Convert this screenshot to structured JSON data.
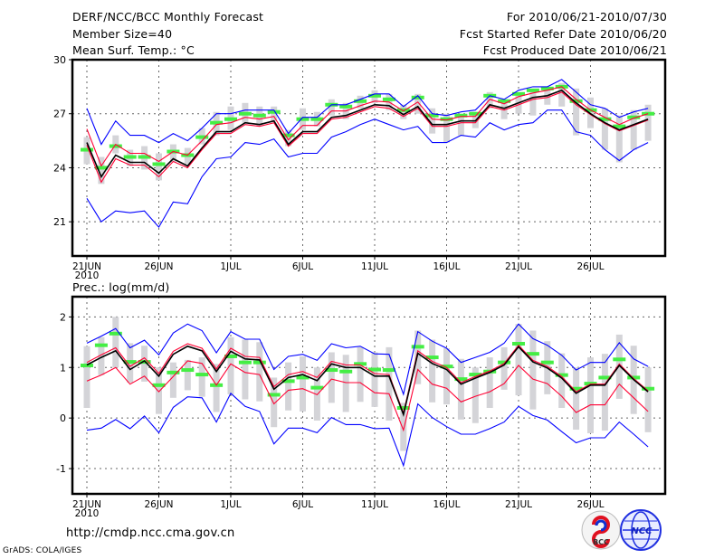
{
  "header": {
    "title": "DERF/NCC/BCC Monthly Forecast",
    "member_size": "Member Size=40",
    "variable": "Mean Surf. Temp.: °C",
    "period": "For 2010/06/21-2010/07/30",
    "start_date": "Fcst Started Refer Date 2010/06/20",
    "produced_date": "Fcst Produced Date 2010/06/21"
  },
  "footer": {
    "url": "http://cmdp.ncc.cma.gov.cn",
    "grads": "GrADS: COLA/IGES",
    "logo_bcc": "BCC",
    "logo_ncc": "NCC"
  },
  "colors": {
    "max_min": "#0000ff",
    "spread": "#ff0033",
    "mean": "#000000",
    "marker": "#44ee44",
    "box": "#d4d4d8"
  },
  "chart_data": [
    {
      "type": "line",
      "title": "Mean Surf. Temp.: °C",
      "ylabel": "",
      "ylim": [
        19.1,
        30
      ],
      "yticks": [
        "21",
        "24",
        "27",
        "30"
      ],
      "ytick_values": [
        21,
        24,
        27,
        30
      ],
      "xtick_labels": [
        "21JUN",
        "26JUN",
        "1JUL",
        "6JUL",
        "11JUL",
        "16JUL",
        "21JUL",
        "26JUL"
      ],
      "xtick_days": [
        0,
        5,
        10,
        15,
        20,
        25,
        30,
        35
      ],
      "year_label": "2010",
      "grid": true,
      "days": 40,
      "series": [
        {
          "name": "max",
          "color": "#0000ff",
          "values": [
            27.3,
            25.3,
            26.6,
            25.8,
            25.8,
            25.4,
            25.9,
            25.5,
            26.2,
            27.0,
            27.0,
            27.2,
            27.2,
            27.2,
            25.9,
            26.8,
            26.8,
            27.5,
            27.5,
            27.8,
            28.1,
            28.1,
            27.4,
            28.0,
            27.0,
            26.9,
            27.1,
            27.2,
            28.0,
            27.8,
            28.3,
            28.5,
            28.5,
            28.9,
            28.2,
            27.5,
            27.3,
            26.8,
            27.1,
            27.3
          ]
        },
        {
          "name": "min",
          "color": "#0000ff",
          "values": [
            22.3,
            21.0,
            21.6,
            21.5,
            21.6,
            20.7,
            22.1,
            22.0,
            23.5,
            24.5,
            24.6,
            25.4,
            25.3,
            25.6,
            24.6,
            24.8,
            24.8,
            25.7,
            26.0,
            26.4,
            26.7,
            26.4,
            26.1,
            26.3,
            25.4,
            25.4,
            25.8,
            25.7,
            26.5,
            26.1,
            26.4,
            26.5,
            27.2,
            27.2,
            26.0,
            25.8,
            25.0,
            24.4,
            25.0,
            25.4
          ]
        },
        {
          "name": "upper",
          "color": "#ff0033",
          "values": [
            26.15,
            24.1,
            25.3,
            24.8,
            24.8,
            24.35,
            24.9,
            24.7,
            25.5,
            26.4,
            26.5,
            26.8,
            26.7,
            26.85,
            25.55,
            26.35,
            26.35,
            27.15,
            27.15,
            27.45,
            27.7,
            27.65,
            27.15,
            27.65,
            26.7,
            26.65,
            26.85,
            26.85,
            27.8,
            27.55,
            27.95,
            28.15,
            28.3,
            28.5,
            27.8,
            27.2,
            26.8,
            26.4,
            26.75,
            27.0
          ]
        },
        {
          "name": "lower",
          "color": "#ff0033",
          "values": [
            25.25,
            23.2,
            24.5,
            24.15,
            24.15,
            23.5,
            24.35,
            24.0,
            25.0,
            25.9,
            25.9,
            26.4,
            26.3,
            26.5,
            25.2,
            25.9,
            25.9,
            26.7,
            26.8,
            27.1,
            27.4,
            27.3,
            26.85,
            27.3,
            26.3,
            26.3,
            26.5,
            26.5,
            27.4,
            27.2,
            27.5,
            27.8,
            27.9,
            28.2,
            27.5,
            26.95,
            26.45,
            26.05,
            26.35,
            26.65
          ]
        },
        {
          "name": "mean",
          "color": "#000000",
          "values": [
            25.4,
            23.5,
            24.7,
            24.3,
            24.3,
            23.7,
            24.5,
            24.1,
            25.1,
            26.0,
            26.0,
            26.5,
            26.4,
            26.6,
            25.3,
            26.0,
            26.0,
            26.8,
            26.9,
            27.2,
            27.5,
            27.45,
            26.95,
            27.4,
            26.4,
            26.4,
            26.6,
            26.6,
            27.5,
            27.3,
            27.6,
            27.9,
            28.0,
            28.3,
            27.6,
            27.0,
            26.5,
            26.1,
            26.4,
            26.7
          ]
        },
        {
          "name": "marker",
          "color": "#44ee44",
          "values": [
            25.0,
            24.0,
            25.2,
            24.6,
            24.6,
            24.2,
            24.9,
            24.7,
            25.7,
            26.5,
            26.7,
            27.0,
            26.9,
            27.1,
            25.8,
            26.7,
            26.7,
            27.5,
            27.4,
            27.7,
            28.0,
            27.8,
            27.2,
            27.9,
            26.9,
            26.7,
            26.9,
            27.0,
            28.0,
            27.7,
            28.1,
            28.3,
            28.4,
            28.5,
            27.7,
            27.2,
            26.7,
            26.3,
            26.8,
            27.0
          ]
        }
      ],
      "boxes_low": [
        24.2,
        23.1,
        24.8,
        24.1,
        23.9,
        23.3,
        24.3,
        24.2,
        25.3,
        25.8,
        26.1,
        26.5,
        26.3,
        26.6,
        25.2,
        26.1,
        26.3,
        26.9,
        26.7,
        27.3,
        27.6,
        27.2,
        26.7,
        27.0,
        25.9,
        25.4,
        25.8,
        26.2,
        27.3,
        26.7,
        27.0,
        26.9,
        27.5,
        27.4,
        25.8,
        26.2,
        25.0,
        24.3,
        25.0,
        25.5
      ],
      "boxes_high": [
        25.7,
        24.6,
        25.8,
        25.0,
        25.2,
        24.8,
        25.3,
        25.1,
        26.2,
        27.1,
        27.4,
        27.6,
        27.4,
        27.4,
        26.1,
        27.3,
        27.1,
        27.8,
        27.6,
        28.0,
        28.3,
        28.1,
        27.5,
        28.1,
        27.3,
        27.0,
        26.9,
        27.1,
        28.2,
        27.8,
        28.1,
        28.3,
        28.3,
        28.7,
        28.4,
        27.9,
        27.3,
        26.9,
        27.2,
        27.5
      ]
    },
    {
      "type": "line",
      "title": "Prec.: log(mm/d)",
      "ylabel": "",
      "ylim": [
        -1.5,
        2.4
      ],
      "yticks": [
        "-1",
        "0",
        "1",
        "2"
      ],
      "ytick_values": [
        -1,
        0,
        1,
        2
      ],
      "xtick_labels": [
        "21JUN",
        "26JUN",
        "1JUL",
        "6JUL",
        "11JUL",
        "16JUL",
        "21JUL",
        "26JUL"
      ],
      "xtick_days": [
        0,
        5,
        10,
        15,
        20,
        25,
        30,
        35
      ],
      "year_label": "2010",
      "grid": true,
      "days": 40,
      "series": [
        {
          "name": "max",
          "color": "#0000ff",
          "values": [
            1.48,
            1.62,
            1.77,
            1.39,
            1.54,
            1.25,
            1.68,
            1.86,
            1.73,
            1.29,
            1.71,
            1.56,
            1.56,
            0.96,
            1.22,
            1.26,
            1.14,
            1.47,
            1.39,
            1.42,
            1.27,
            1.26,
            0.47,
            1.71,
            1.52,
            1.38,
            1.1,
            1.2,
            1.3,
            1.48,
            1.86,
            1.57,
            1.44,
            1.24,
            0.95,
            1.1,
            1.1,
            1.49,
            1.17,
            1.02
          ]
        },
        {
          "name": "min",
          "color": "#0000ff",
          "values": [
            -0.24,
            -0.2,
            -0.03,
            -0.21,
            0.04,
            -0.29,
            0.21,
            0.42,
            0.4,
            -0.08,
            0.49,
            0.23,
            0.13,
            -0.51,
            -0.2,
            -0.2,
            -0.29,
            0.01,
            -0.13,
            -0.13,
            -0.21,
            -0.2,
            -0.94,
            0.28,
            0.01,
            -0.17,
            -0.32,
            -0.32,
            -0.21,
            -0.08,
            0.23,
            0.05,
            -0.04,
            -0.27,
            -0.49,
            -0.39,
            -0.39,
            -0.08,
            -0.32,
            -0.57
          ]
        },
        {
          "name": "upper",
          "color": "#ff0033",
          "values": [
            1.1,
            1.25,
            1.39,
            1.02,
            1.19,
            0.88,
            1.32,
            1.47,
            1.38,
            0.97,
            1.38,
            1.22,
            1.2,
            0.62,
            0.86,
            0.92,
            0.8,
            1.12,
            1.05,
            1.05,
            0.88,
            0.86,
            0.1,
            1.33,
            1.12,
            1.0,
            0.7,
            0.82,
            0.93,
            1.08,
            1.44,
            1.14,
            1.02,
            0.82,
            0.52,
            0.67,
            0.67,
            1.07,
            0.78,
            0.54
          ]
        },
        {
          "name": "lower",
          "color": "#ff0033",
          "values": [
            0.73,
            0.85,
            1.0,
            0.67,
            0.83,
            0.52,
            0.82,
            1.13,
            1.08,
            0.65,
            1.07,
            0.9,
            0.86,
            0.28,
            0.55,
            0.58,
            0.46,
            0.77,
            0.7,
            0.7,
            0.5,
            0.48,
            -0.24,
            0.96,
            0.67,
            0.59,
            0.32,
            0.43,
            0.52,
            0.68,
            1.04,
            0.77,
            0.68,
            0.43,
            0.11,
            0.26,
            0.26,
            0.67,
            0.4,
            0.13
          ]
        },
        {
          "name": "mean",
          "color": "#000000",
          "values": [
            1.05,
            1.2,
            1.33,
            0.96,
            1.13,
            0.83,
            1.26,
            1.42,
            1.33,
            0.92,
            1.32,
            1.17,
            1.15,
            0.57,
            0.8,
            0.86,
            0.74,
            1.07,
            1.0,
            1.0,
            0.83,
            0.83,
            0.07,
            1.28,
            1.08,
            0.96,
            0.67,
            0.79,
            0.9,
            1.05,
            1.41,
            1.11,
            0.99,
            0.79,
            0.49,
            0.65,
            0.65,
            1.04,
            0.76,
            0.52
          ]
        },
        {
          "name": "marker",
          "color": "#44ee44",
          "values": [
            1.04,
            1.44,
            1.67,
            1.11,
            1.11,
            0.65,
            0.9,
            0.95,
            0.86,
            0.65,
            1.22,
            1.1,
            1.1,
            0.46,
            0.73,
            0.8,
            0.6,
            0.95,
            0.92,
            1.07,
            0.96,
            0.95,
            0.2,
            1.41,
            1.2,
            1.02,
            0.77,
            0.86,
            0.92,
            1.1,
            1.47,
            1.27,
            1.1,
            0.85,
            0.58,
            0.68,
            0.8,
            1.16,
            0.8,
            0.58
          ]
        }
      ],
      "boxes_low": [
        0.2,
        0.85,
        1.0,
        0.7,
        0.72,
        0.08,
        0.4,
        0.55,
        0.42,
        0.12,
        0.47,
        0.37,
        0.33,
        -0.18,
        0.15,
        0.13,
        -0.05,
        0.3,
        0.12,
        0.32,
        0.22,
        -0.05,
        -0.65,
        0.67,
        0.31,
        0.27,
        -0.03,
        -0.1,
        0.2,
        0.56,
        0.45,
        0.17,
        0.47,
        0.2,
        -0.23,
        -0.3,
        -0.25,
        0.38,
        0.08,
        -0.28
      ],
      "boxes_high": [
        1.42,
        1.6,
        2.0,
        1.48,
        1.43,
        1.0,
        1.1,
        1.15,
        1.2,
        1.07,
        1.6,
        1.55,
        1.5,
        0.8,
        1.1,
        1.22,
        1.0,
        1.3,
        1.25,
        1.4,
        1.3,
        1.4,
        0.3,
        1.73,
        1.55,
        1.38,
        1.17,
        1.0,
        1.2,
        1.4,
        1.86,
        1.73,
        1.52,
        1.28,
        1.0,
        1.2,
        1.27,
        1.65,
        1.43,
        1.0
      ]
    }
  ]
}
